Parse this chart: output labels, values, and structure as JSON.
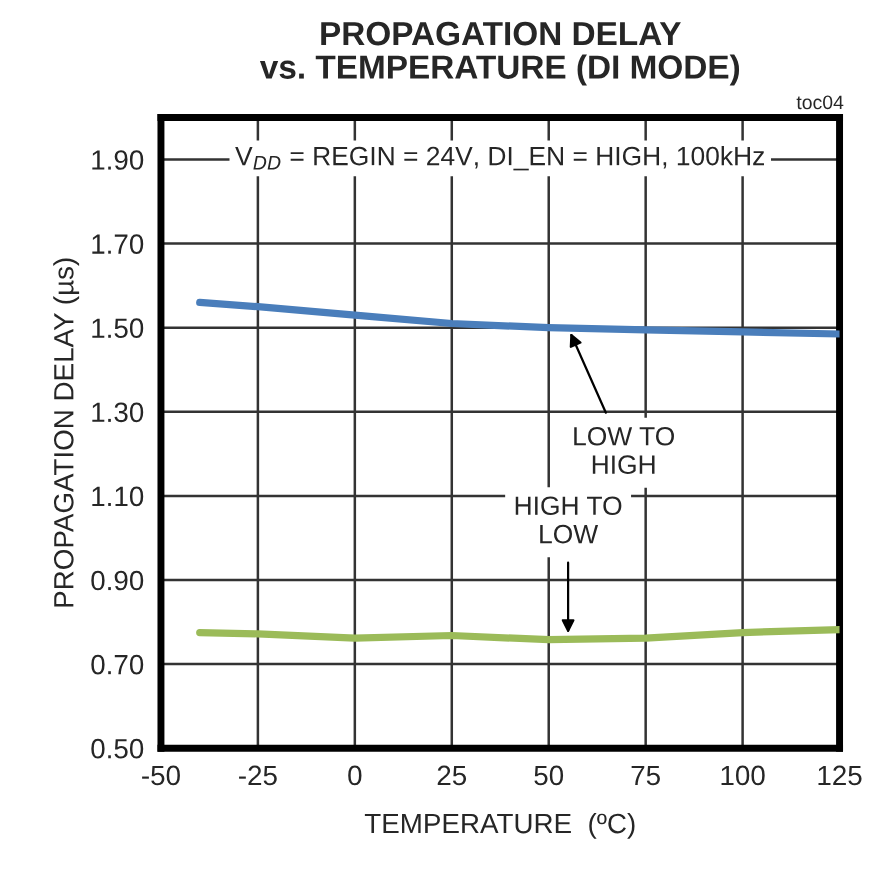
{
  "chart_data": {
    "type": "line",
    "title": "PROPAGATION DELAY\nvs. TEMPERATURE (DI MODE)",
    "xlabel": "TEMPERATURE  (ºC)",
    "ylabel": "PROPAGATION DELAY (µs)",
    "x": [
      -40,
      -25,
      0,
      25,
      50,
      75,
      100,
      125
    ],
    "series": [
      {
        "color": "#4a7ebb",
        "values": [
          1.56,
          1.55,
          1.53,
          1.51,
          1.5,
          1.495,
          1.49,
          1.485
        ]
      },
      {
        "color": "#9bbb59",
        "values": [
          0.775,
          0.772,
          0.762,
          0.768,
          0.758,
          0.762,
          0.775,
          0.782
        ]
      }
    ],
    "xlim": [
      -50,
      125
    ],
    "xticks": [
      -50,
      -25,
      0,
      25,
      50,
      75,
      100,
      125
    ],
    "ylim": [
      0.5,
      2.0
    ],
    "yticks": [
      {
        "value": 0.5,
        "label": "0.50"
      },
      {
        "value": 0.7,
        "label": "0.70"
      },
      {
        "value": 0.9,
        "label": "0.90"
      },
      {
        "value": 1.1,
        "label": "1.10"
      },
      {
        "value": 1.3,
        "label": "1.30"
      },
      {
        "value": 1.5,
        "label": "1.50"
      },
      {
        "value": 1.7,
        "label": "1.70"
      },
      {
        "value": 1.9,
        "label": "1.90"
      }
    ],
    "grid": true,
    "legend": false,
    "marker": "none",
    "line_style": "solid",
    "annotations": [
      "toc04",
      "V$_{DD}$ = REGIN = 24V, DI_EN = HIGH, 100kHz",
      {
        "text": "LOW TO\nHIGH",
        "x": 55,
        "y": 1.5
      },
      {
        "text": "HIGH TO\nLOW",
        "x": 55,
        "y": 0.76
      }
    ]
  }
}
